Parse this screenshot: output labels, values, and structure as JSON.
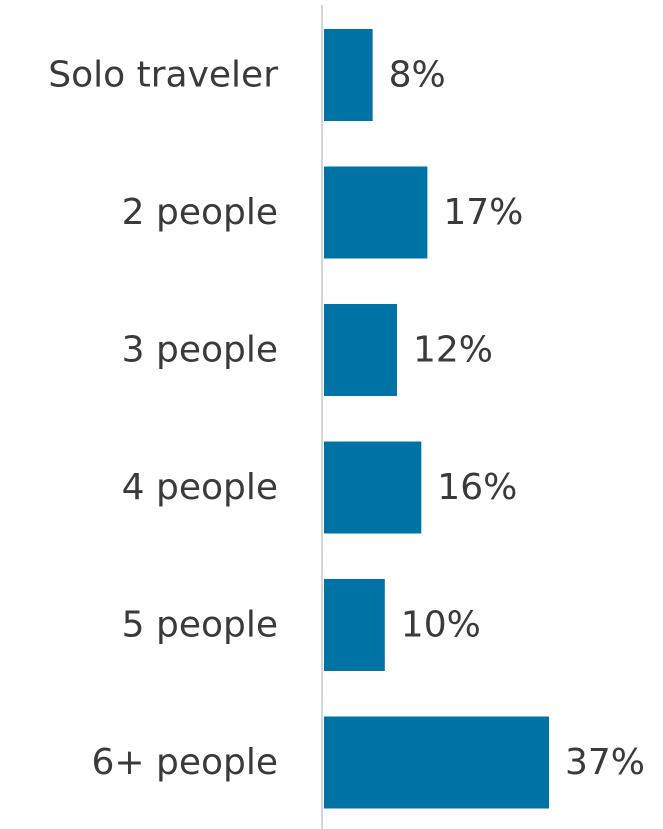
{
  "chart_data": {
    "type": "bar",
    "orientation": "horizontal",
    "categories": [
      "Solo traveler",
      "2 people",
      "3 people",
      "4 people",
      "5 people",
      "6+ people"
    ],
    "values": [
      8,
      17,
      12,
      16,
      10,
      37
    ],
    "value_labels": [
      "8%",
      "17%",
      "12%",
      "16%",
      "10%",
      "37%"
    ],
    "unit": "%",
    "title": "",
    "xlabel": "",
    "ylabel": "",
    "xlim": [
      0,
      37
    ],
    "grid": false,
    "legend": "none",
    "bar_color": "#0073a6",
    "axis_color": "#d0d6dc",
    "text_color": "#3a3a3a"
  }
}
